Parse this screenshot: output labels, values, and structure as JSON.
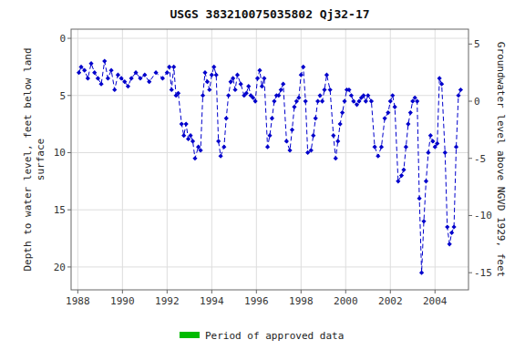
{
  "chart_data": {
    "type": "line",
    "title": "USGS 383210075035802 Qj32-17",
    "ylabel": "Depth to water level, feet below land\nsurface",
    "y2label": "Groundwater level above NGVD 1929, feet",
    "xlim": [
      1987.7,
      2005.5
    ],
    "ylim": [
      22.0,
      -0.8
    ],
    "yticks": [
      0,
      5,
      10,
      15,
      20
    ],
    "y2lim": [
      -16.5,
      6.3
    ],
    "y2ticks": [
      5,
      0,
      -5,
      -10,
      -15
    ],
    "xticks": [
      1988,
      1990,
      1992,
      1994,
      1996,
      1998,
      2000,
      2002,
      2004
    ],
    "grid": true,
    "legend": "bottom",
    "x": [
      1988.05,
      1988.15,
      1988.3,
      1988.45,
      1988.6,
      1988.75,
      1988.9,
      1989.05,
      1989.2,
      1989.35,
      1989.5,
      1989.65,
      1989.8,
      1989.95,
      1990.1,
      1990.25,
      1990.4,
      1990.6,
      1990.8,
      1991.0,
      1991.2,
      1991.5,
      1991.8,
      1992.0,
      1992.1,
      1992.2,
      1992.3,
      1992.4,
      1992.5,
      1992.65,
      1992.75,
      1992.85,
      1992.95,
      1993.05,
      1993.15,
      1993.25,
      1993.4,
      1993.5,
      1993.6,
      1993.7,
      1993.8,
      1993.9,
      1994.0,
      1994.1,
      1994.2,
      1994.3,
      1994.4,
      1994.55,
      1994.65,
      1994.75,
      1994.85,
      1994.95,
      1995.05,
      1995.15,
      1995.3,
      1995.45,
      1995.55,
      1995.65,
      1995.75,
      1995.85,
      1995.95,
      1996.05,
      1996.15,
      1996.25,
      1996.35,
      1996.5,
      1996.6,
      1996.7,
      1996.8,
      1996.9,
      1997.0,
      1997.1,
      1997.2,
      1997.35,
      1997.5,
      1997.6,
      1997.7,
      1997.8,
      1997.9,
      1998.0,
      1998.1,
      1998.2,
      1998.3,
      1998.45,
      1998.55,
      1998.65,
      1998.75,
      1998.85,
      1998.95,
      1999.05,
      1999.15,
      1999.3,
      1999.45,
      1999.55,
      1999.65,
      1999.75,
      1999.85,
      1999.95,
      2000.05,
      2000.15,
      2000.25,
      2000.35,
      2000.5,
      2000.6,
      2000.7,
      2000.8,
      2000.9,
      2001.0,
      2001.15,
      2001.3,
      2001.45,
      2001.6,
      2001.75,
      2001.9,
      2002.0,
      2002.1,
      2002.2,
      2002.35,
      2002.5,
      2002.6,
      2002.7,
      2002.8,
      2002.9,
      2003.0,
      2003.1,
      2003.2,
      2003.3,
      2003.4,
      2003.5,
      2003.6,
      2003.7,
      2003.8,
      2003.9,
      2004.0,
      2004.1,
      2004.2,
      2004.3,
      2004.45,
      2004.55,
      2004.65,
      2004.75,
      2004.85,
      2004.95,
      2005.05,
      2005.15
    ],
    "series": [
      {
        "color": "#0000CC",
        "marker": "diamond",
        "line_style": "dashed",
        "values": [
          3.0,
          2.5,
          2.8,
          3.5,
          2.2,
          3.0,
          3.5,
          4.0,
          2.0,
          3.5,
          2.8,
          4.5,
          3.2,
          3.5,
          3.8,
          4.2,
          3.5,
          3.0,
          3.5,
          3.2,
          3.8,
          3.0,
          3.5,
          3.0,
          2.5,
          4.5,
          2.5,
          5.0,
          4.8,
          7.5,
          8.5,
          7.5,
          8.8,
          8.5,
          9.0,
          10.5,
          9.5,
          9.8,
          5.0,
          3.0,
          3.8,
          4.5,
          3.2,
          2.5,
          3.2,
          9.0,
          10.3,
          9.5,
          7.0,
          5.0,
          3.8,
          3.5,
          4.5,
          3.2,
          4.0,
          5.0,
          4.8,
          4.2,
          5.0,
          5.2,
          5.5,
          3.5,
          2.8,
          4.2,
          3.5,
          9.5,
          8.5,
          7.0,
          5.5,
          5.0,
          5.0,
          4.5,
          4.0,
          9.0,
          9.8,
          8.0,
          6.0,
          5.5,
          5.2,
          3.2,
          2.5,
          5.5,
          10.0,
          9.8,
          8.5,
          7.0,
          5.5,
          5.0,
          5.5,
          4.5,
          3.2,
          4.5,
          8.5,
          10.5,
          9.0,
          7.5,
          6.5,
          5.5,
          4.5,
          4.5,
          5.0,
          5.5,
          5.8,
          5.5,
          5.2,
          5.0,
          5.5,
          5.0,
          5.5,
          9.5,
          10.3,
          9.5,
          7.0,
          6.5,
          5.5,
          5.0,
          6.0,
          12.5,
          12.0,
          11.5,
          9.5,
          7.5,
          6.5,
          5.5,
          5.2,
          5.5,
          14.0,
          20.5,
          16.0,
          12.5,
          10.0,
          8.5,
          9.0,
          9.5,
          9.2,
          3.5,
          4.0,
          10.0,
          16.5,
          18.0,
          17.0,
          16.5,
          9.5,
          5.0,
          4.5
        ]
      },
      {
        "name": "Period of approved data",
        "color": "#00BB00",
        "type": "band"
      }
    ]
  }
}
